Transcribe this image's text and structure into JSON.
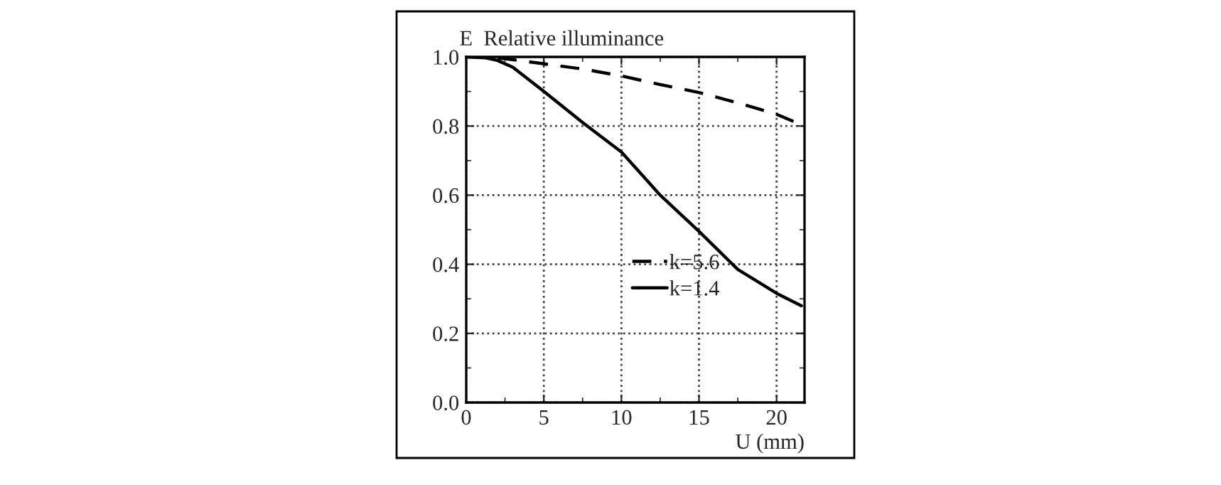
{
  "chart_data": {
    "type": "line",
    "ylabel": "E  Relative illuminance",
    "xlabel": "U (mm)",
    "xlim": [
      0,
      21.8
    ],
    "ylim": [
      0.0,
      1.0
    ],
    "xticks": [
      0,
      5,
      10,
      15,
      20
    ],
    "yticks": [
      {
        "value": 0.0,
        "label": "0.0"
      },
      {
        "value": 0.2,
        "label": "0.2"
      },
      {
        "value": 0.4,
        "label": "0.4"
      },
      {
        "value": 0.6,
        "label": "0.6"
      },
      {
        "value": 0.8,
        "label": "0.8"
      },
      {
        "value": 1.0,
        "label": "1.0"
      }
    ],
    "grid": true,
    "legend": "bottom",
    "marker": "none",
    "series": [
      {
        "name": "k=5.6",
        "color": "#000000",
        "line_style": "dashed",
        "x": [
          0,
          2.5,
          5,
          7.5,
          10,
          12.5,
          15,
          17.5,
          20,
          21.8
        ],
        "values": [
          1.0,
          0.995,
          0.98,
          0.965,
          0.945,
          0.92,
          0.897,
          0.867,
          0.834,
          0.8
        ]
      },
      {
        "name": "k=1.4",
        "color": "#000000",
        "line_style": "solid",
        "x": [
          0,
          1,
          2,
          3,
          5,
          7.5,
          10,
          12.5,
          15,
          17.5,
          20,
          21.6
        ],
        "values": [
          1.0,
          1.0,
          0.99,
          0.97,
          0.9,
          0.81,
          0.725,
          0.6,
          0.495,
          0.385,
          0.316,
          0.28
        ]
      }
    ]
  }
}
